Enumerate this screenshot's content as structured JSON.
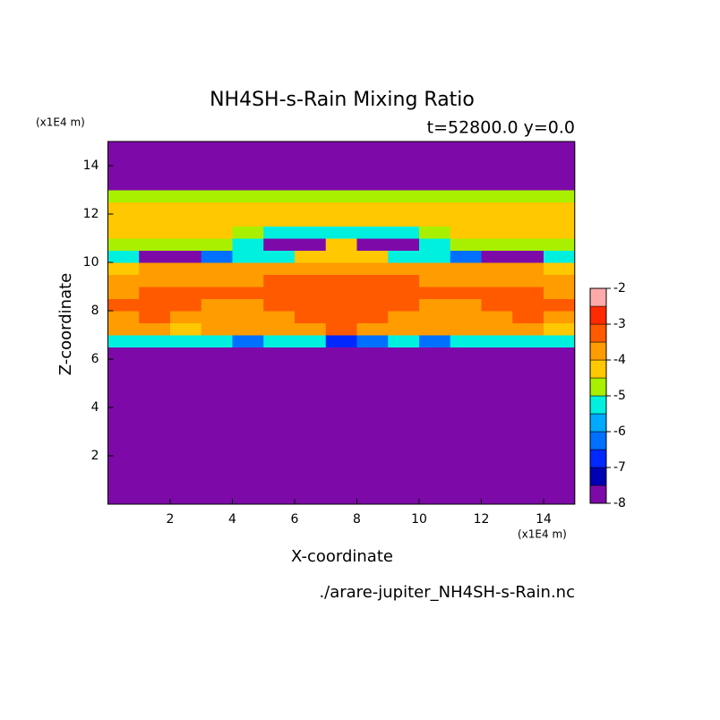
{
  "chart_data": {
    "type": "contourf",
    "title": "NH4SH-s-Rain Mixing Ratio",
    "subtitle": "t=52800.0 y=0.0",
    "x_label": "X-coordinate",
    "y_label": "Z-coordinate",
    "x_unit": "(x1E4 m)",
    "y_unit": "(x1E4 m)",
    "source": "./arare-jupiter_NH4SH-s-Rain.nc",
    "xlim": [
      0,
      15
    ],
    "ylim": [
      0,
      15
    ],
    "xticks": [
      2,
      4,
      6,
      8,
      10,
      12,
      14
    ],
    "yticks": [
      2,
      4,
      6,
      8,
      10,
      12,
      14
    ],
    "xbins": [
      0,
      1,
      2,
      3,
      4,
      5,
      6,
      7,
      8,
      9,
      10,
      11,
      12,
      13,
      14,
      15
    ],
    "ybins": [
      0,
      0.5,
      1,
      1.5,
      2,
      2.5,
      3,
      3.5,
      4,
      4.5,
      5,
      5.5,
      6,
      6.5,
      7,
      7.5,
      8,
      8.5,
      9,
      9.5,
      10,
      10.5,
      11,
      11.5,
      12,
      12.5,
      13,
      13.5,
      14,
      14.5,
      15
    ],
    "levels": [
      -8,
      -7.5,
      -7,
      -6.5,
      -6,
      -5.5,
      -5,
      -4.5,
      -4,
      -3.5,
      -3,
      -2.5,
      -2
    ],
    "colors": [
      "#7d0aa8",
      "#0000b4",
      "#0028ff",
      "#0070ff",
      "#00aaff",
      "#00f0e0",
      "#a8f000",
      "#ffc800",
      "#ff9c00",
      "#ff5a00",
      "#ff2a00",
      "#ffaaaa"
    ],
    "colorbar_ticks": [
      -2,
      -3,
      -4,
      -5,
      -6,
      -7,
      -8
    ],
    "z": [
      [
        -7.9,
        -7.9,
        -7.9,
        -7.9,
        -7.9,
        -7.9,
        -7.9,
        -7.9,
        -7.9,
        -7.9,
        -7.9,
        -7.9,
        -7.9,
        -7.9,
        -7.9
      ],
      [
        -7.9,
        -7.9,
        -7.9,
        -7.9,
        -7.9,
        -7.9,
        -7.9,
        -7.9,
        -7.9,
        -7.9,
        -7.9,
        -7.9,
        -7.9,
        -7.9,
        -7.9
      ],
      [
        -7.9,
        -7.9,
        -7.9,
        -7.9,
        -7.9,
        -7.9,
        -7.9,
        -7.9,
        -7.9,
        -7.9,
        -7.9,
        -7.9,
        -7.9,
        -7.9,
        -7.9
      ],
      [
        -7.9,
        -7.9,
        -7.9,
        -7.9,
        -7.9,
        -7.9,
        -7.9,
        -7.9,
        -7.9,
        -7.9,
        -7.9,
        -7.9,
        -7.9,
        -7.9,
        -7.9
      ],
      [
        -7.9,
        -7.9,
        -7.9,
        -7.9,
        -7.9,
        -7.9,
        -7.9,
        -7.9,
        -7.9,
        -7.9,
        -7.9,
        -7.9,
        -7.9,
        -7.9,
        -7.9
      ],
      [
        -7.9,
        -7.9,
        -7.9,
        -7.9,
        -7.9,
        -7.9,
        -7.9,
        -7.9,
        -7.9,
        -7.9,
        -7.9,
        -7.9,
        -7.9,
        -7.9,
        -7.9
      ],
      [
        -7.9,
        -7.9,
        -7.9,
        -7.9,
        -7.9,
        -7.9,
        -7.9,
        -7.9,
        -7.9,
        -7.9,
        -7.9,
        -7.9,
        -7.9,
        -7.9,
        -7.9
      ],
      [
        -7.9,
        -7.9,
        -7.9,
        -7.9,
        -7.9,
        -7.9,
        -7.9,
        -7.9,
        -7.9,
        -7.9,
        -7.9,
        -7.9,
        -7.9,
        -7.9,
        -7.9
      ],
      [
        -7.9,
        -7.9,
        -7.9,
        -7.9,
        -7.9,
        -7.9,
        -7.9,
        -7.9,
        -7.9,
        -7.9,
        -7.9,
        -7.9,
        -7.9,
        -7.9,
        -7.9
      ],
      [
        -7.9,
        -7.9,
        -7.9,
        -7.9,
        -7.9,
        -7.9,
        -7.9,
        -7.9,
        -7.9,
        -7.9,
        -7.9,
        -7.9,
        -7.9,
        -7.9,
        -7.9
      ],
      [
        -7.9,
        -7.9,
        -7.9,
        -7.9,
        -7.9,
        -7.9,
        -7.9,
        -7.9,
        -7.9,
        -7.9,
        -7.9,
        -7.9,
        -7.9,
        -7.9,
        -7.9
      ],
      [
        -7.9,
        -7.9,
        -7.9,
        -7.9,
        -7.9,
        -7.9,
        -7.9,
        -7.9,
        -7.9,
        -7.9,
        -7.9,
        -7.9,
        -7.9,
        -7.9,
        -7.9
      ],
      [
        -7.9,
        -7.9,
        -7.9,
        -7.9,
        -7.9,
        -7.9,
        -7.9,
        -7.9,
        -7.9,
        -7.9,
        -7.9,
        -7.9,
        -7.9,
        -7.9,
        -7.9
      ],
      [
        -5.3,
        -5.3,
        -5.3,
        -5.3,
        -6.2,
        -5.3,
        -5.3,
        -6.8,
        -6.2,
        -5.3,
        -6.2,
        -5.3,
        -5.3,
        -5.3,
        -5.3
      ],
      [
        -3.8,
        -3.8,
        -4.3,
        -3.8,
        -3.8,
        -3.8,
        -3.8,
        -3.2,
        -3.8,
        -3.8,
        -3.8,
        -3.8,
        -3.8,
        -3.8,
        -4.3
      ],
      [
        -3.8,
        -3.2,
        -3.8,
        -3.8,
        -3.8,
        -3.8,
        -3.2,
        -3.2,
        -3.2,
        -3.8,
        -3.8,
        -3.8,
        -3.8,
        -3.2,
        -3.8
      ],
      [
        -3.2,
        -3.2,
        -3.2,
        -3.8,
        -3.8,
        -3.2,
        -3.2,
        -3.2,
        -3.2,
        -3.2,
        -3.8,
        -3.8,
        -3.2,
        -3.2,
        -3.2
      ],
      [
        -3.8,
        -3.2,
        -3.2,
        -3.2,
        -3.2,
        -3.2,
        -3.2,
        -3.2,
        -3.2,
        -3.2,
        -3.2,
        -3.2,
        -3.2,
        -3.2,
        -3.8
      ],
      [
        -3.8,
        -3.8,
        -3.8,
        -3.8,
        -3.8,
        -3.2,
        -3.2,
        -3.2,
        -3.2,
        -3.2,
        -3.8,
        -3.8,
        -3.8,
        -3.8,
        -3.8
      ],
      [
        -4.3,
        -3.8,
        -3.8,
        -3.8,
        -3.8,
        -3.8,
        -3.8,
        -3.8,
        -3.8,
        -3.8,
        -3.8,
        -3.8,
        -3.8,
        -3.8,
        -4.3
      ],
      [
        -5.3,
        -7.9,
        -7.9,
        -6.2,
        -5.3,
        -5.3,
        -4.3,
        -4.3,
        -4.3,
        -5.3,
        -5.3,
        -6.2,
        -7.9,
        -7.9,
        -5.3
      ],
      [
        -4.8,
        -4.8,
        -4.8,
        -4.8,
        -5.3,
        -7.9,
        -7.9,
        -4.3,
        -7.9,
        -7.9,
        -5.3,
        -4.8,
        -4.8,
        -4.8,
        -4.8
      ],
      [
        -4.3,
        -4.3,
        -4.3,
        -4.3,
        -4.8,
        -5.3,
        -5.3,
        -5.3,
        -5.3,
        -5.3,
        -4.8,
        -4.3,
        -4.3,
        -4.3,
        -4.3
      ],
      [
        -4.3,
        -4.3,
        -4.3,
        -4.3,
        -4.3,
        -4.3,
        -4.3,
        -4.3,
        -4.3,
        -4.3,
        -4.3,
        -4.3,
        -4.3,
        -4.3,
        -4.3
      ],
      [
        -4.3,
        -4.3,
        -4.3,
        -4.3,
        -4.3,
        -4.3,
        -4.3,
        -4.3,
        -4.3,
        -4.3,
        -4.3,
        -4.3,
        -4.3,
        -4.3,
        -4.3
      ],
      [
        -4.8,
        -4.8,
        -4.8,
        -4.8,
        -4.8,
        -4.8,
        -4.8,
        -4.8,
        -4.8,
        -4.8,
        -4.8,
        -4.8,
        -4.8,
        -4.8,
        -4.8
      ],
      [
        -7.9,
        -7.9,
        -7.9,
        -7.9,
        -7.9,
        -7.9,
        -7.9,
        -7.9,
        -7.9,
        -7.9,
        -7.9,
        -7.9,
        -7.9,
        -7.9,
        -7.9
      ],
      [
        -7.9,
        -7.9,
        -7.9,
        -7.9,
        -7.9,
        -7.9,
        -7.9,
        -7.9,
        -7.9,
        -7.9,
        -7.9,
        -7.9,
        -7.9,
        -7.9,
        -7.9
      ],
      [
        -7.9,
        -7.9,
        -7.9,
        -7.9,
        -7.9,
        -7.9,
        -7.9,
        -7.9,
        -7.9,
        -7.9,
        -7.9,
        -7.9,
        -7.9,
        -7.9,
        -7.9
      ],
      [
        -7.9,
        -7.9,
        -7.9,
        -7.9,
        -7.9,
        -7.9,
        -7.9,
        -7.9,
        -7.9,
        -7.9,
        -7.9,
        -7.9,
        -7.9,
        -7.9,
        -7.9
      ]
    ]
  }
}
